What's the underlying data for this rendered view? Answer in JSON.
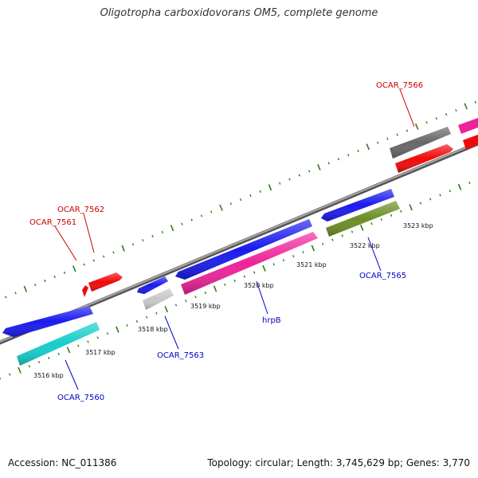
{
  "title": "Oligotropha carboxidovorans OM5, complete genome",
  "accession": "Accession: NC_011386",
  "topology": "Topology: circular; Length: 3,745,629 bp; Genes: 3,770",
  "colors": {
    "backbone": "#7f7f7f",
    "tick": "#2e7d16",
    "forward_label": "#cc0000",
    "reverse_label": "#0000cc",
    "blue": "#1a1aee",
    "magenta": "#ee2299",
    "red": "#ee0a0a",
    "cyan": "#16cccc",
    "gray": "#666666",
    "lightgray": "#c8c8c8",
    "olive": "#6b8e23"
  },
  "ticks": [
    "3516 kbp",
    "3517 kbp",
    "3518 kbp",
    "3519 kbp",
    "3520 kbp",
    "3521 kbp",
    "3522 kbp",
    "3523 kbp"
  ],
  "genes_forward": [
    {
      "label": "OCAR_7561",
      "color": "red",
      "track": "upper-outer",
      "strand": "forward"
    },
    {
      "label": "OCAR_7562",
      "color": "red",
      "track": "upper-outer",
      "strand": "forward"
    },
    {
      "label": "OCAR_7566",
      "color": "gray",
      "track": "upper-outer",
      "strand": "forward"
    }
  ],
  "genes_reverse": [
    {
      "label": "OCAR_7560",
      "color": "cyan",
      "track": "lower-outer",
      "strand": "reverse"
    },
    {
      "label": "OCAR_7563",
      "color": "lightgray",
      "track": "lower-outer",
      "strand": "reverse"
    },
    {
      "label": "hrpB",
      "color": "magenta",
      "track": "lower-outer",
      "strand": "reverse"
    },
    {
      "label": "OCAR_7565",
      "color": "olive",
      "track": "lower-outer",
      "strand": "reverse"
    }
  ]
}
